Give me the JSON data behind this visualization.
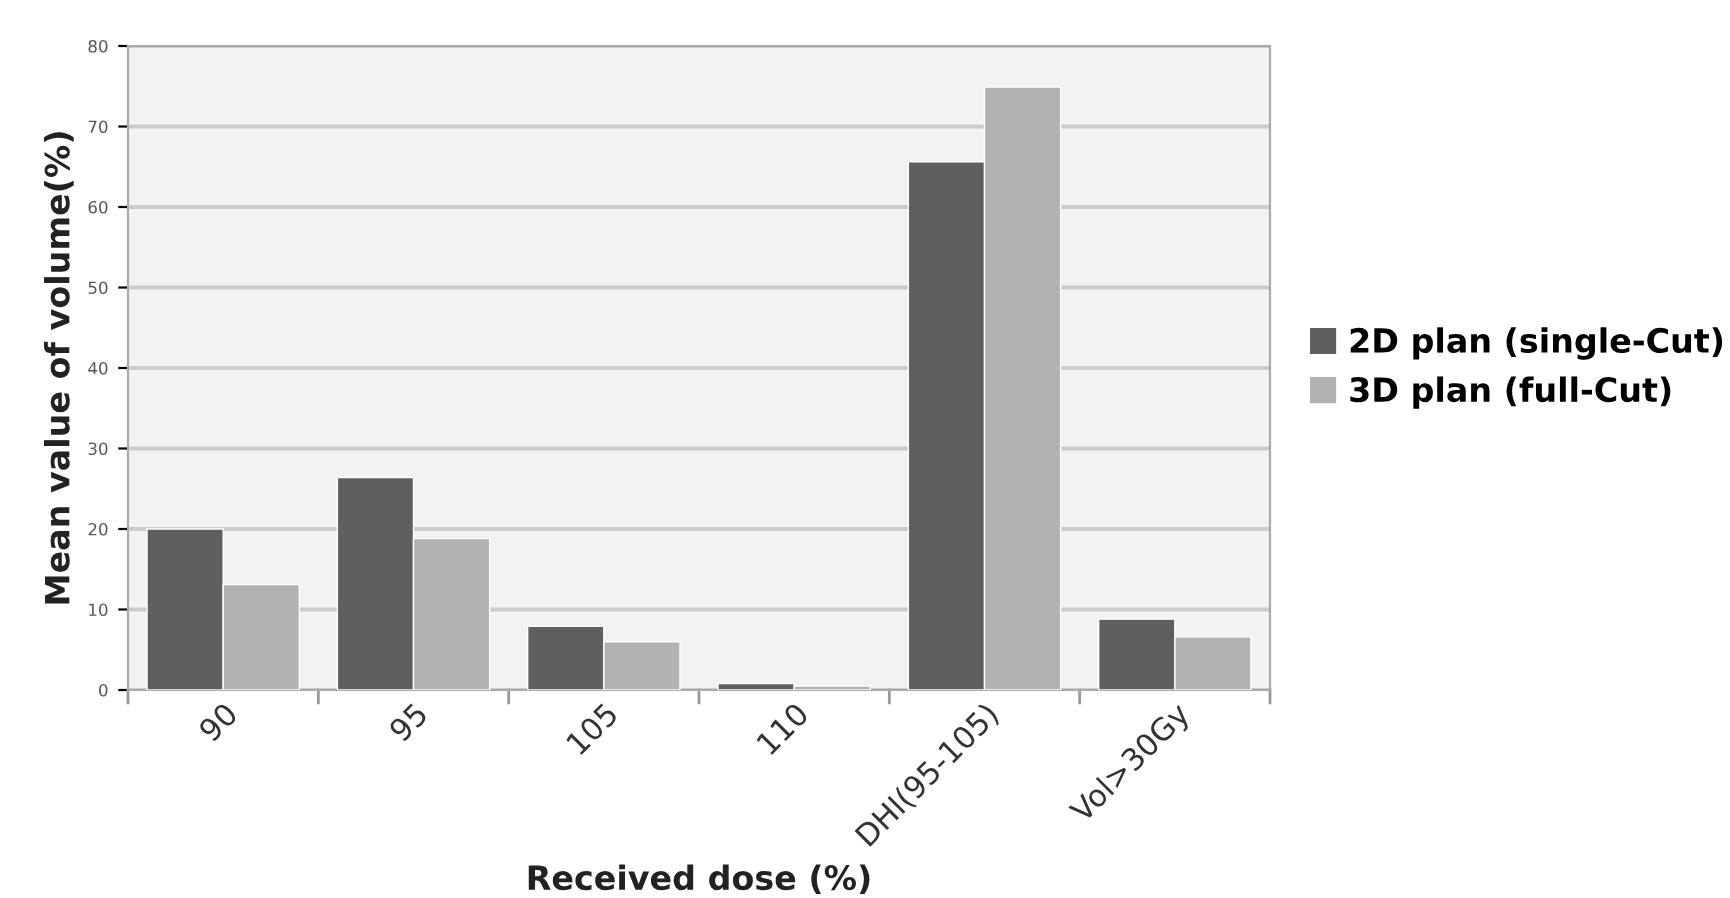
{
  "chart_data": {
    "type": "bar",
    "xlabel": "Received dose (%)",
    "ylabel": "Mean value of volume(%)",
    "categories": [
      "90",
      "95",
      "105",
      "110",
      "DHI(95-105)",
      "Vol>30Gy"
    ],
    "series": [
      {
        "name": "2D plan (single-Cut)",
        "color": "#5f5f5f",
        "values": [
          20,
          26.4,
          7.9,
          0.8,
          65.6,
          8.8
        ]
      },
      {
        "name": "3D plan (full-Cut)",
        "color": "#b2b2b2",
        "values": [
          13.1,
          18.8,
          6,
          0.5,
          74.9,
          6.6
        ]
      }
    ],
    "ylim": [
      0,
      80
    ],
    "yticks": [
      0,
      10,
      20,
      30,
      40,
      50,
      60,
      70,
      80
    ],
    "grid": "y",
    "legend": "right"
  }
}
